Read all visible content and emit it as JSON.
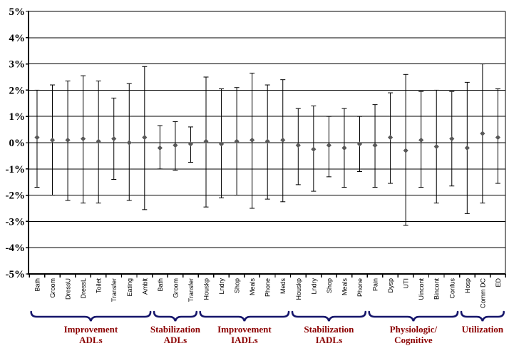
{
  "chart_data": {
    "type": "scatter",
    "subtype": "point-estimates-with-confidence-intervals",
    "title": "",
    "xlabel": "",
    "ylabel": "",
    "ylim": [
      -5,
      5
    ],
    "grid": true,
    "legend": "none",
    "yticks": [
      5,
      4,
      3,
      2,
      1,
      0,
      -1,
      -2,
      -3,
      -4,
      -5
    ],
    "ytick_labels": [
      "5%",
      "4%",
      "3%",
      "2%",
      "1%",
      "0%",
      "-1%",
      "-2%",
      "-3%",
      "-4%",
      "-5%"
    ],
    "categories": [
      "Bath",
      "Groom",
      "DressU",
      "DressL",
      "Toilet",
      "Transfer",
      "Eating",
      "Amblt",
      "Bath",
      "Groom",
      "Transfer",
      "Houskp",
      "Lndry",
      "Shop",
      "Meals",
      "Phone",
      "Meds",
      "Houskp",
      "Lndry",
      "Shop",
      "Meals",
      "Phone",
      "Pain",
      "Dysp",
      "UTI",
      "Uincont",
      "Bincont",
      "Confus",
      "Hosp",
      "Comm DC",
      "ED"
    ],
    "series": [
      {
        "name": "point-estimate",
        "marker": "diamond",
        "values": [
          0.2,
          0.1,
          0.1,
          0.15,
          0.05,
          0.15,
          0.0,
          0.2,
          -0.2,
          -0.1,
          -0.05,
          0.05,
          -0.05,
          0.05,
          0.1,
          0.05,
          0.1,
          -0.1,
          -0.25,
          -0.1,
          -0.2,
          -0.05,
          -0.1,
          0.2,
          -0.3,
          0.1,
          -0.15,
          0.15,
          -0.2,
          0.35,
          0.2
        ]
      },
      {
        "name": "ci-upper",
        "values": [
          2.0,
          2.2,
          2.35,
          2.55,
          2.35,
          1.7,
          2.25,
          2.9,
          0.65,
          0.8,
          0.6,
          2.5,
          2.05,
          2.1,
          2.65,
          2.2,
          2.4,
          1.3,
          1.4,
          1.0,
          1.3,
          1.0,
          1.45,
          1.9,
          2.6,
          1.95,
          2.0,
          1.95,
          2.3,
          3.0,
          2.05
        ]
      },
      {
        "name": "ci-lower",
        "values": [
          -1.7,
          -2.0,
          -2.2,
          -2.3,
          -2.3,
          -1.4,
          -2.2,
          -2.55,
          -1.0,
          -1.05,
          -0.75,
          -2.45,
          -2.1,
          -2.0,
          -2.5,
          -2.15,
          -2.25,
          -1.6,
          -1.85,
          -1.3,
          -1.7,
          -1.1,
          -1.7,
          -1.55,
          -3.15,
          -1.7,
          -2.3,
          -1.65,
          -2.7,
          -2.3,
          -1.55
        ]
      }
    ],
    "groups": [
      {
        "line1": "Improvement",
        "line2": "ADLs",
        "start": 0,
        "end": 7
      },
      {
        "line1": "Stabilization",
        "line2": "ADLs",
        "start": 8,
        "end": 10
      },
      {
        "line1": "Improvement",
        "line2": "IADLs",
        "start": 11,
        "end": 16
      },
      {
        "line1": "Stabilization",
        "line2": "IADLs",
        "start": 17,
        "end": 21
      },
      {
        "line1": "Physiologic/",
        "line2": "Cognitive",
        "start": 22,
        "end": 27
      },
      {
        "line1": "Utilization",
        "line2": "",
        "start": 28,
        "end": 30
      }
    ],
    "colors": {
      "background": "#ffffff",
      "line": "#000000",
      "marker": "#595959",
      "brace": "#16166b",
      "group_label": "#8b0000",
      "tick_label": "#000000"
    }
  }
}
